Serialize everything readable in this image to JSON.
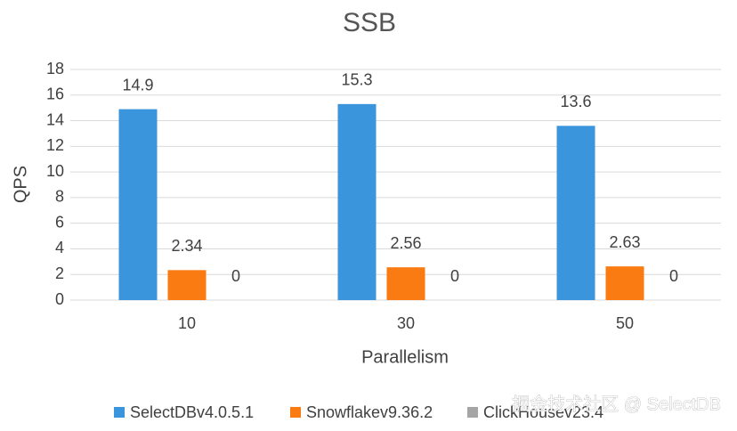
{
  "chart_data": {
    "type": "bar",
    "title": "SSB",
    "x_label": "Parallelism",
    "y_label": "QPS",
    "categories": [
      "10",
      "30",
      "50"
    ],
    "series": [
      {
        "name": "SelectDBv4.0.5.1",
        "color": "#3a95dc",
        "values": [
          14.9,
          15.3,
          13.6
        ]
      },
      {
        "name": "Snowflakev9.36.2",
        "color": "#fa7b12",
        "values": [
          2.34,
          2.56,
          2.63
        ]
      },
      {
        "name": "ClickHousev23.4",
        "color": "#a5a5a5",
        "values": [
          0,
          0,
          0
        ]
      }
    ],
    "ylim": [
      0,
      18
    ],
    "yticks": [
      0,
      2,
      4,
      6,
      8,
      10,
      12,
      14,
      16,
      18
    ],
    "grid": true,
    "legend": "bottom",
    "watermark": "掘金技术社区 @ SelectDB"
  }
}
